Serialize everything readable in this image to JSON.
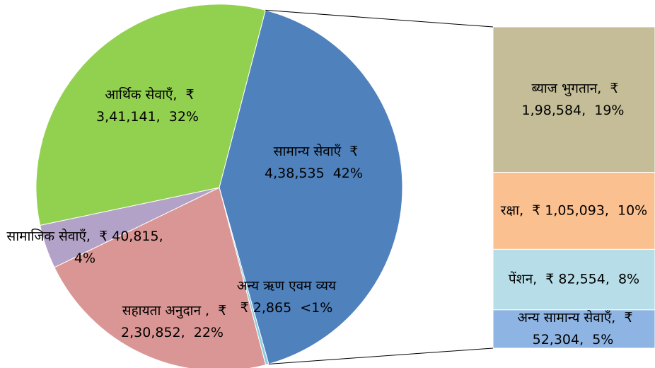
{
  "chart_data": {
    "type": "bar_of_pie",
    "pie": {
      "categories": [
        "सामान्य सेवाएँ",
        "अन्य ऋण एवम व्यय",
        "सहायता अनुदान ,",
        "सामाजिक सेवाएँ,",
        "आर्थिक सेवाएँ,"
      ],
      "values": [
        438535,
        2865,
        230852,
        40815,
        341141
      ],
      "value_labels": [
        "₹ 4,38,535",
        "₹ 2,865",
        "₹ 2,30,852,",
        "₹ 40,815,",
        "₹ 3,41,141,"
      ],
      "percents": [
        42,
        0.3,
        22,
        4,
        32
      ],
      "percent_labels": [
        "42%",
        "<1%",
        "22%",
        "4%",
        "32%"
      ],
      "colors": [
        "#4f81bd",
        "#93cddd",
        "#d99694",
        "#b3a2c7",
        "#92d050"
      ]
    },
    "bar": {
      "categories": [
        "ब्याज भुगतान,",
        "रक्षा,",
        "पेंशन,",
        "अन्य सामान्य सेवाएँ,"
      ],
      "values": [
        198584,
        105093,
        82554,
        52304
      ],
      "value_labels": [
        "₹ 1,98,584,",
        "₹ 1,05,093,",
        "₹ 82,554,",
        "₹ 52,304,"
      ],
      "percents": [
        19,
        10,
        8,
        5
      ],
      "percent_labels": [
        "19%",
        "10%",
        "8%",
        "5%"
      ],
      "colors": [
        "#c4bd97",
        "#fac090",
        "#b7dee8",
        "#8eb4e3"
      ]
    }
  }
}
